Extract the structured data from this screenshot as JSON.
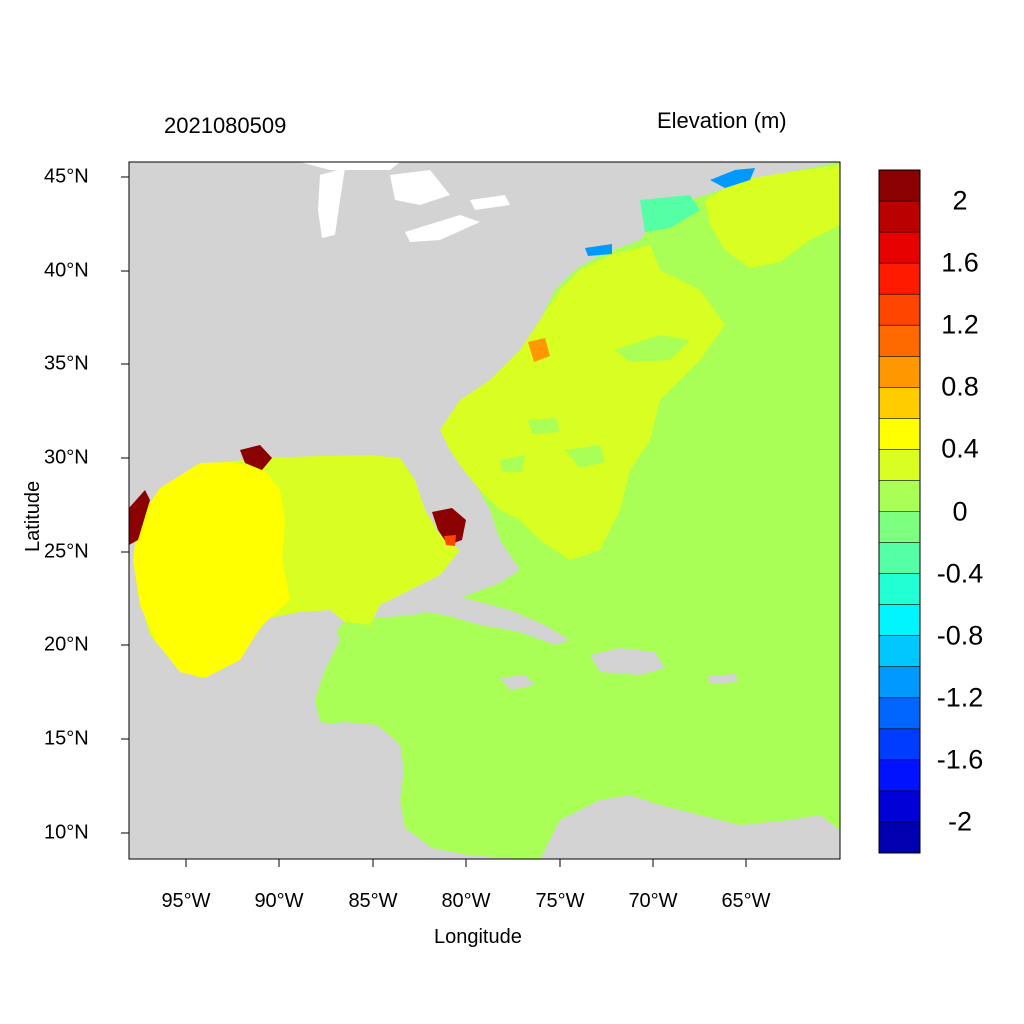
{
  "map": {
    "title_left": "2021080509",
    "title_right": "Elevation (m)",
    "xlabel": "Longitude",
    "ylabel": "Latitude",
    "x_ticks": [
      "95°W",
      "90°W",
      "85°W",
      "80°W",
      "75°W",
      "70°W",
      "65°W"
    ],
    "y_ticks": [
      "45°N",
      "40°N",
      "35°N",
      "30°N",
      "25°N",
      "20°N",
      "15°N",
      "10°N"
    ],
    "land_color": "#d3d3d3",
    "extent": {
      "lon": [
        -98,
        -60
      ],
      "lat": [
        8.5,
        46
      ]
    }
  },
  "colorbar": {
    "labels": [
      "2",
      "1.6",
      "1.2",
      "0.8",
      "0.4",
      "0",
      "-0.4",
      "-0.8",
      "-1.2",
      "-1.6",
      "-2"
    ],
    "colors": [
      "#8b0000",
      "#bb0000",
      "#e60000",
      "#ff1a00",
      "#ff4500",
      "#ff6a00",
      "#ff9800",
      "#ffcc00",
      "#ffff00",
      "#d9ff22",
      "#a9ff55",
      "#7dff80",
      "#55ffa6",
      "#22ffd5",
      "#00f5ff",
      "#00c8ff",
      "#009aff",
      "#0066ff",
      "#003cff",
      "#0012ff",
      "#0000d7",
      "#0000b0"
    ]
  }
}
